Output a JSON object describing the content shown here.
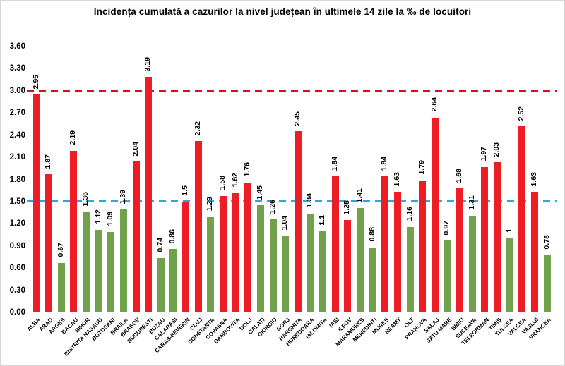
{
  "chart_data": {
    "type": "bar",
    "title": "Incidența cumulată a cazurilor la nivel județean în ultimele 14 zile la ‰ de locuitori",
    "categories": [
      "ALBA",
      "ARAD",
      "ARGES",
      "BACAU",
      "BIHOR",
      "BISTRITA NASAUD",
      "BOTOSANI",
      "BRAILA",
      "BRASOV",
      "BUCURESTI",
      "BUZAU",
      "CALARASI",
      "CARAS-SEVERIN",
      "CLUJ",
      "CONSTANTA",
      "COVASNA",
      "DAMBOVITA",
      "DOLJ",
      "GALATI",
      "GIURGIU",
      "GORJ",
      "HARGHITA",
      "HUNEDOARA",
      "IALOMITA",
      "IASI",
      "ILFOV",
      "MARAMURES",
      "MEHEDINTI",
      "MURES",
      "NEAMT",
      "OLT",
      "PRAHOVA",
      "SALAJ",
      "SATU MARE",
      "SIBIU",
      "SUCEAVA",
      "TELEORMAN",
      "TIMIS",
      "TULCEA",
      "VALCEA",
      "VASLUI",
      "VRANCEA"
    ],
    "values": [
      2.95,
      1.87,
      0.67,
      2.19,
      1.36,
      1.12,
      1.09,
      1.39,
      2.04,
      3.19,
      0.74,
      0.86,
      1.5,
      2.32,
      1.29,
      1.58,
      1.62,
      1.76,
      1.45,
      1.26,
      1.04,
      2.45,
      1.34,
      1.1,
      1.84,
      1.25,
      1.41,
      0.88,
      1.84,
      1.63,
      1.16,
      1.79,
      2.64,
      0.97,
      1.68,
      1.31,
      1.97,
      2.03,
      1,
      2.52,
      1.63,
      0.78
    ],
    "value_labels": [
      "2.95",
      "1.87",
      "0.67",
      "2.19",
      "1.36",
      "1.12",
      "1.09",
      "1.39",
      "2.04",
      "3.19",
      "0.74",
      "0.86",
      "1.5",
      "2.32",
      "1.29",
      "1.58",
      "1.62",
      "1.76",
      "1.45",
      "1.26",
      "1.04",
      "2.45",
      "1.34",
      "1.1",
      "1.84",
      "1.25",
      "1.41",
      "0.88",
      "1.84",
      "1.63",
      "1.16",
      "1.79",
      "2.64",
      "0.97",
      "1.68",
      "1.31",
      "1.97",
      "2.03",
      "1",
      "2.52",
      "1.63",
      "0.78"
    ],
    "bar_colors": [
      "red",
      "red",
      "green",
      "red",
      "green",
      "green",
      "green",
      "green",
      "red",
      "red",
      "green",
      "green",
      "red",
      "red",
      "green",
      "red",
      "red",
      "red",
      "green",
      "green",
      "green",
      "red",
      "green",
      "green",
      "red",
      "red",
      "green",
      "green",
      "red",
      "red",
      "green",
      "red",
      "red",
      "green",
      "red",
      "green",
      "red",
      "red",
      "green",
      "red",
      "red",
      "green"
    ],
    "palette": {
      "red": "#ee1c25",
      "green": "#6fa24b"
    },
    "y_ticks": [
      "0.00",
      "0.30",
      "0.60",
      "0.90",
      "1.20",
      "1.50",
      "1.80",
      "2.10",
      "2.40",
      "2.70",
      "3.00",
      "3.30",
      "3.60"
    ],
    "ylim": [
      0,
      3.6
    ],
    "xlabel": "",
    "ylabel": "",
    "grid": false,
    "legend": false,
    "reference_lines": [
      {
        "name": "red-threshold-line",
        "value": 3.0,
        "color": "#cf1222",
        "style": "dashed"
      },
      {
        "name": "blue-threshold-line",
        "value": 1.5,
        "color": "#2ba6de",
        "style": "dashed"
      }
    ]
  }
}
